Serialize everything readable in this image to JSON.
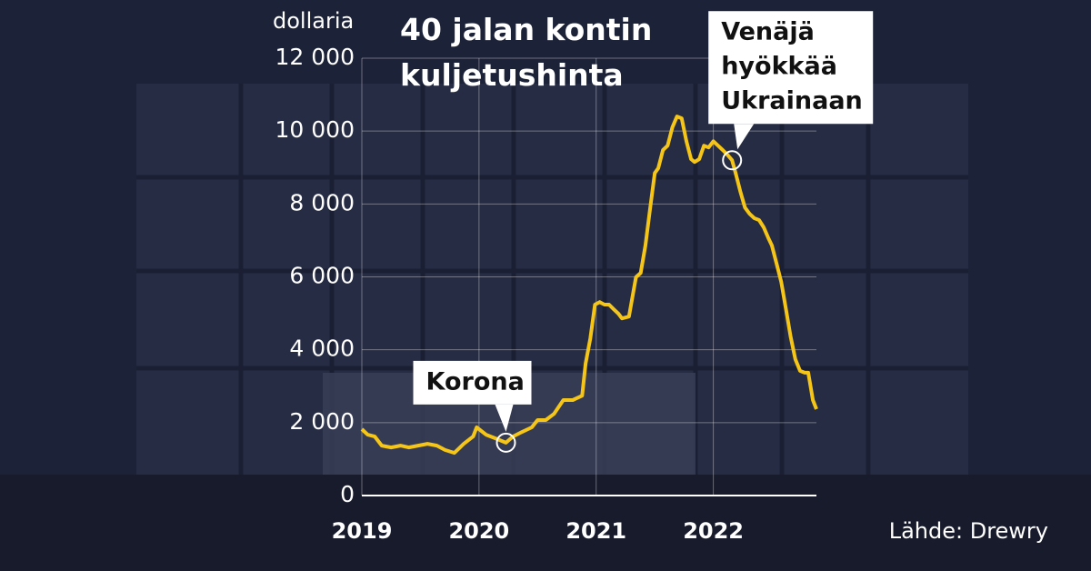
{
  "chart_data": {
    "type": "line",
    "title": "40 jalan kontin kuljetushinta",
    "y_label": "dollaria",
    "source": "Lähde: Drewry",
    "x": [
      2019.0,
      2019.05,
      2019.11,
      2019.17,
      2019.25,
      2019.33,
      2019.4,
      2019.48,
      2019.56,
      2019.64,
      2019.71,
      2019.79,
      2019.87,
      2019.95,
      2019.98,
      2020.06,
      2020.14,
      2020.23,
      2020.29,
      2020.37,
      2020.45,
      2020.5,
      2020.57,
      2020.64,
      2020.72,
      2020.8,
      2020.88,
      2020.91,
      2020.95,
      2020.99,
      2021.03,
      2021.07,
      2021.11,
      2021.15,
      2021.19,
      2021.22,
      2021.28,
      2021.34,
      2021.38,
      2021.42,
      2021.46,
      2021.5,
      2021.53,
      2021.57,
      2021.61,
      2021.65,
      2021.69,
      2021.73,
      2021.77,
      2021.81,
      2021.84,
      2021.88,
      2021.92,
      2021.96,
      2022.0,
      2022.04,
      2022.08,
      2022.12,
      2022.16,
      2022.19,
      2022.23,
      2022.27,
      2022.31,
      2022.35,
      2022.39,
      2022.43,
      2022.47,
      2022.5,
      2022.54,
      2022.58,
      2022.62,
      2022.66,
      2022.7,
      2022.74,
      2022.78,
      2022.81,
      2022.85,
      2022.88
    ],
    "series": [
      {
        "color": "#f5c518",
        "values": [
          1820,
          1670,
          1620,
          1370,
          1320,
          1370,
          1320,
          1370,
          1420,
          1370,
          1250,
          1170,
          1420,
          1620,
          1870,
          1670,
          1570,
          1450,
          1620,
          1750,
          1870,
          2070,
          2070,
          2240,
          2620,
          2620,
          2740,
          3620,
          4310,
          5240,
          5310,
          5240,
          5240,
          5110,
          4990,
          4860,
          4910,
          5990,
          6110,
          6860,
          7860,
          8850,
          8980,
          9480,
          9600,
          10100,
          10400,
          10350,
          9720,
          9230,
          9150,
          9230,
          9600,
          9550,
          9720,
          9600,
          9480,
          9350,
          9200,
          8850,
          8350,
          7900,
          7730,
          7610,
          7560,
          7360,
          7060,
          6860,
          6360,
          5860,
          5110,
          4360,
          3740,
          3420,
          3370,
          3370,
          2620,
          2370
        ]
      }
    ],
    "xlim": [
      2019,
      2022.88
    ],
    "xticks": [
      2019,
      2020,
      2021,
      2022
    ],
    "ylim": [
      0,
      12000
    ],
    "yticks": [
      0,
      {
        "value": 2000,
        "label": "2 000"
      },
      {
        "value": 4000,
        "label": "4 000"
      },
      {
        "value": 6000,
        "label": "6 000"
      },
      {
        "value": 8000,
        "label": "8 000"
      },
      {
        "value": 10000,
        "label": "10 000"
      },
      {
        "value": 12000,
        "label": "12 000"
      }
    ],
    "grid": true,
    "annotations": [
      {
        "lines": [
          "Korona"
        ],
        "x": 2020.23,
        "y": 1450
      },
      {
        "lines": [
          "Venäjä",
          "hyökkää",
          "Ukrainaan"
        ],
        "x": 2022.16,
        "y": 9200
      }
    ]
  }
}
